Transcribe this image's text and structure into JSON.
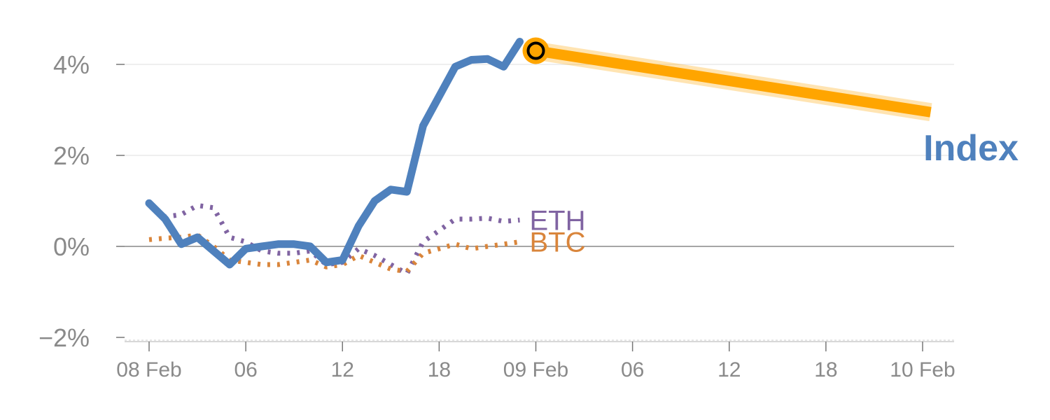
{
  "chart_data": {
    "type": "line",
    "title": "",
    "xlabel": "",
    "ylabel": "",
    "x_tick_labels": [
      "08 Feb",
      "06",
      "12",
      "18",
      "09 Feb",
      "06",
      "12",
      "18",
      "10 Feb"
    ],
    "x_tick_hours": [
      0,
      6,
      12,
      18,
      24,
      30,
      36,
      42,
      48
    ],
    "xlim_hours": [
      0,
      48
    ],
    "ylim": [
      -2.1,
      5
    ],
    "y_ticks": [
      -2,
      0,
      2,
      4
    ],
    "y_tick_labels": [
      "−2%",
      "0%",
      "2%",
      "4%"
    ],
    "grid": true,
    "colors": {
      "index": "#4f81bd",
      "eth": "#8064a2",
      "btc": "#d9853b",
      "projection": "#ffa500",
      "grid": "#e5e5e5",
      "zero_line": "#888888",
      "tick_text": "#8a8a8a"
    },
    "series": [
      {
        "name": "Index",
        "style": "solid",
        "x": [
          0,
          1,
          2,
          3,
          4,
          5,
          6,
          7,
          8,
          9,
          10,
          11,
          12,
          13,
          14,
          15,
          16,
          17,
          18,
          19,
          20,
          21,
          22,
          23
        ],
        "y": [
          0.95,
          0.6,
          0.05,
          0.2,
          -0.1,
          -0.4,
          -0.05,
          0.0,
          0.05,
          0.05,
          0.0,
          -0.35,
          -0.3,
          0.45,
          1.0,
          1.25,
          1.2,
          2.65,
          3.3,
          3.95,
          4.1,
          4.12,
          3.95,
          4.5
        ]
      },
      {
        "name": "ETH",
        "style": "dotted",
        "x": [
          0,
          1,
          2,
          3,
          4,
          5,
          6,
          7,
          8,
          9,
          10,
          11,
          12,
          13,
          14,
          15,
          16,
          17,
          18,
          19,
          20,
          21,
          22,
          23
        ],
        "y": [
          0.95,
          0.65,
          0.7,
          0.9,
          0.85,
          0.2,
          0.1,
          -0.1,
          -0.15,
          -0.15,
          -0.1,
          -0.4,
          -0.35,
          -0.05,
          -0.2,
          -0.4,
          -0.6,
          0.1,
          0.35,
          0.6,
          0.6,
          0.62,
          0.55,
          0.58
        ]
      },
      {
        "name": "BTC",
        "style": "dotted",
        "x": [
          0,
          1,
          2,
          3,
          4,
          5,
          6,
          7,
          8,
          9,
          10,
          11,
          12,
          13,
          14,
          15,
          16,
          17,
          18,
          19,
          20,
          21,
          22,
          23
        ],
        "y": [
          0.15,
          0.18,
          0.2,
          0.25,
          0.0,
          -0.3,
          -0.35,
          -0.4,
          -0.4,
          -0.35,
          -0.3,
          -0.45,
          -0.4,
          -0.2,
          -0.35,
          -0.5,
          -0.55,
          -0.15,
          -0.05,
          0.05,
          -0.05,
          0.0,
          0.05,
          0.1
        ]
      }
    ],
    "projection": {
      "x": [
        24.0,
        48.5
      ],
      "y": [
        4.3,
        2.95
      ]
    },
    "marker": {
      "x": 24.0,
      "y": 4.3
    }
  }
}
